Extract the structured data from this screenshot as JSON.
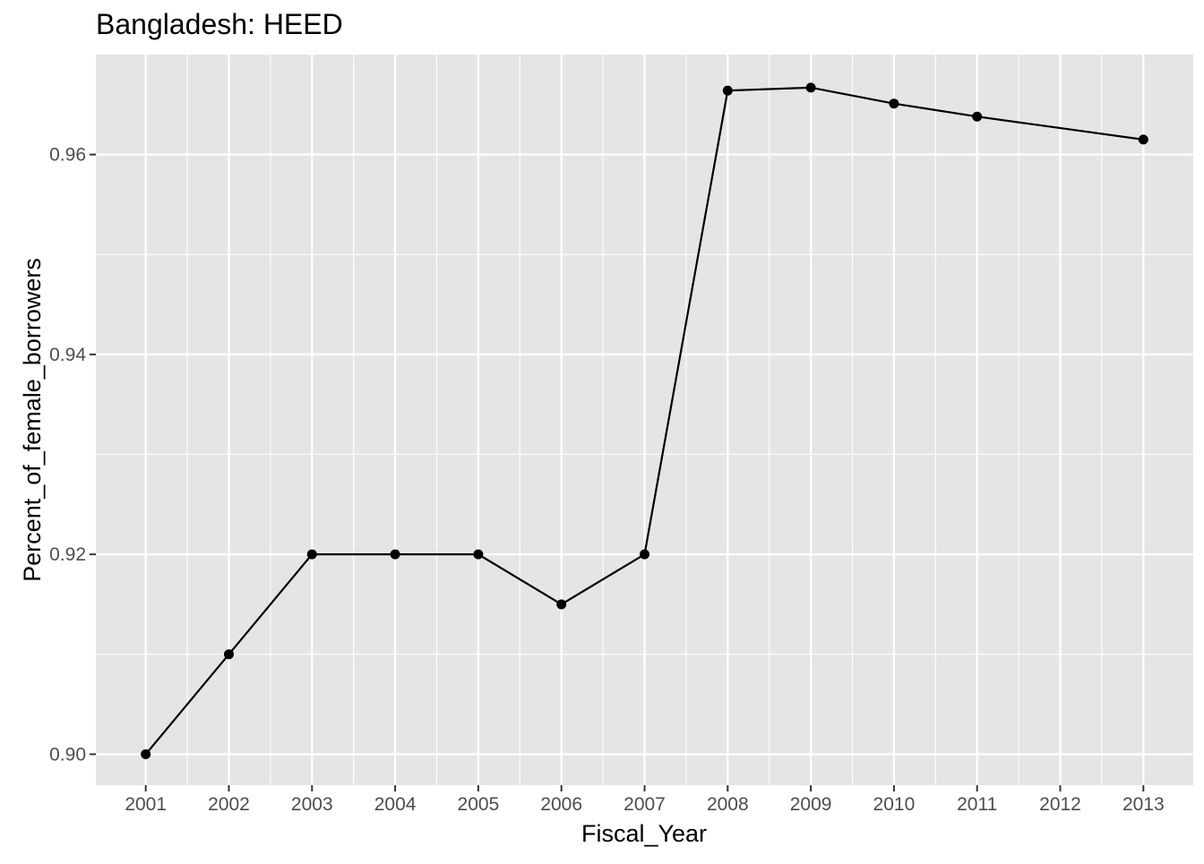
{
  "chart_data": {
    "type": "line",
    "title": "Bangladesh:  HEED",
    "xlabel": "Fiscal_Year",
    "ylabel": "Percent_of_female_borrowers",
    "x_ticks": [
      "2001",
      "2002",
      "2003",
      "2004",
      "2005",
      "2006",
      "2007",
      "2008",
      "2009",
      "2010",
      "2011",
      "2012",
      "2013"
    ],
    "y_ticks": [
      "0.90",
      "0.92",
      "0.94",
      "0.96"
    ],
    "xlim": [
      2000.4,
      2013.6
    ],
    "ylim": [
      0.8969,
      0.97
    ],
    "grid": true,
    "colors": {
      "panel": "#e5e5e5",
      "grid": "#ffffff",
      "line": "#000000",
      "point": "#000000"
    },
    "series": [
      {
        "x": [
          2001,
          2002,
          2003,
          2004,
          2005,
          2006,
          2007,
          2008,
          2009,
          2010,
          2011,
          2012,
          2013
        ],
        "values": [
          0.9,
          0.91,
          0.92,
          0.92,
          0.92,
          0.915,
          0.92,
          0.9664,
          0.9667,
          0.9651,
          0.9638,
          null,
          0.9615
        ]
      }
    ]
  }
}
